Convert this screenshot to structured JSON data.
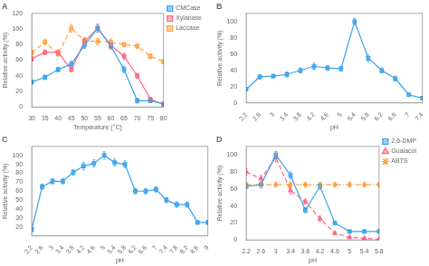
{
  "chart_data": [
    {
      "type": "line",
      "title": "A",
      "x_label": "Temperature (°C)",
      "y_label": "Relative activity (%)",
      "x": [
        30,
        35,
        40,
        45,
        50,
        55,
        60,
        65,
        70,
        75,
        80
      ],
      "xlim": [
        30,
        80
      ],
      "xticks": [
        30,
        35,
        40,
        45,
        50,
        55,
        60,
        65,
        70,
        75,
        80
      ],
      "ylim": [
        0,
        120
      ],
      "yticks": [
        0,
        20,
        40,
        60,
        80,
        100,
        120
      ],
      "grid": false,
      "legend": "upper right",
      "series": [
        {
          "name": "CMCase",
          "values": [
            32,
            38,
            48,
            55,
            79,
            101,
            78,
            48,
            8,
            8,
            4
          ],
          "yerr": [
            3,
            3,
            3,
            4,
            4,
            5,
            4,
            4,
            3,
            2,
            2
          ],
          "marker": "square",
          "line_style": "solid"
        },
        {
          "name": "Xylanase",
          "values": [
            62,
            70,
            70,
            48,
            84,
            101,
            79,
            65,
            40,
            10,
            3
          ],
          "yerr": [
            3,
            3,
            3,
            3,
            4,
            5,
            4,
            4,
            3,
            2,
            1
          ],
          "marker": "square",
          "line_style": "solid"
        },
        {
          "name": "Laccase",
          "values": [
            70,
            83,
            68,
            101,
            85,
            84,
            83,
            80,
            78,
            65,
            58
          ],
          "yerr": [
            3,
            4,
            3,
            5,
            4,
            4,
            4,
            3,
            3,
            3,
            3
          ],
          "marker": "square",
          "line_style": "dashed"
        }
      ]
    },
    {
      "type": "line",
      "title": "B",
      "x_label": "pH",
      "y_label": "Relative activity (%)",
      "x": [
        2.2,
        2.6,
        3.0,
        3.4,
        3.8,
        4.2,
        4.6,
        5.0,
        5.4,
        5.8,
        6.2,
        6.6,
        7.0,
        7.4
      ],
      "xlim": [
        2.2,
        7.4
      ],
      "xticks": [
        2.2,
        2.6,
        3,
        3.4,
        3.8,
        4.2,
        4.6,
        5,
        5.4,
        5.8,
        6.2,
        6.6,
        7,
        7.4
      ],
      "ylim": [
        0,
        110
      ],
      "yticks": [
        0,
        20,
        40,
        60,
        80,
        100
      ],
      "grid": false,
      "series": [
        {
          "values": [
            17,
            32,
            33,
            35,
            40,
            45,
            43,
            42,
            100,
            55,
            40,
            30,
            10,
            6
          ],
          "yerr": [
            2,
            3,
            2,
            3,
            3,
            4,
            3,
            3,
            4,
            4,
            3,
            3,
            2,
            2
          ],
          "marker": "square",
          "line_style": "solid"
        }
      ]
    },
    {
      "type": "line",
      "title": "C",
      "x_label": "pH",
      "y_label": "Relative activity (%)",
      "x": [
        2.2,
        2.6,
        3.0,
        3.4,
        3.8,
        4.2,
        4.6,
        5.0,
        5.4,
        5.8,
        6.2,
        6.6,
        7.0,
        7.4,
        7.8,
        8.2,
        8.6,
        9.0
      ],
      "xlim": [
        2.2,
        9
      ],
      "xticks": [
        2.2,
        2.6,
        3,
        3.4,
        3.8,
        4.2,
        4.6,
        5,
        5.4,
        5.8,
        6.2,
        6.6,
        7,
        7.4,
        7.8,
        8.2,
        8.6,
        9
      ],
      "ylim": [
        10,
        110
      ],
      "yticks": [
        20,
        30,
        40,
        50,
        60,
        70,
        80,
        90,
        100
      ],
      "grid": false,
      "series": [
        {
          "values": [
            17,
            65,
            71,
            71,
            81,
            88,
            91,
            100,
            92,
            90,
            60,
            60,
            62,
            50,
            45,
            45,
            25,
            25
          ],
          "yerr": [
            2,
            3,
            3,
            3,
            3,
            4,
            4,
            4,
            4,
            4,
            3,
            3,
            3,
            3,
            3,
            3,
            2,
            2
          ],
          "marker": "square",
          "line_style": "solid"
        }
      ]
    },
    {
      "type": "line",
      "title": "D",
      "x_label": "pH",
      "y_label": "Relative activity (%)",
      "x": [
        2.2,
        2.6,
        3.0,
        3.4,
        3.8,
        4.2,
        4.6,
        5.0,
        5.4,
        5.8
      ],
      "xlim": [
        2.2,
        5.8
      ],
      "xticks": [
        2.2,
        2.6,
        3,
        3.4,
        3.8,
        4.2,
        4.6,
        5,
        5.4,
        5.8
      ],
      "ylim": [
        0,
        110
      ],
      "yticks": [
        0,
        20,
        40,
        60,
        80,
        100
      ],
      "grid": false,
      "legend": "upper right",
      "series": [
        {
          "name": "2,6-DMP",
          "values": [
            63,
            65,
            100,
            76,
            35,
            63,
            20,
            10,
            10,
            10
          ],
          "yerr": [
            3,
            4,
            4,
            4,
            3,
            3,
            2,
            2,
            2,
            2
          ],
          "marker": "square",
          "line_style": "solid"
        },
        {
          "name": "Guaiacol",
          "values": [
            80,
            72,
            97,
            58,
            45,
            25,
            8,
            3,
            2,
            1
          ],
          "yerr": [
            4,
            4,
            5,
            4,
            3,
            3,
            2,
            1,
            1,
            1
          ],
          "marker": "triangle",
          "line_style": "dashed"
        },
        {
          "name": "ABTS",
          "values": [
            65,
            65,
            65,
            65,
            65,
            65,
            65,
            65,
            65,
            65
          ],
          "yerr": [
            3,
            3,
            3,
            3,
            3,
            3,
            3,
            3,
            3,
            3
          ],
          "marker": "star",
          "line_style": "dashdot"
        }
      ]
    }
  ]
}
